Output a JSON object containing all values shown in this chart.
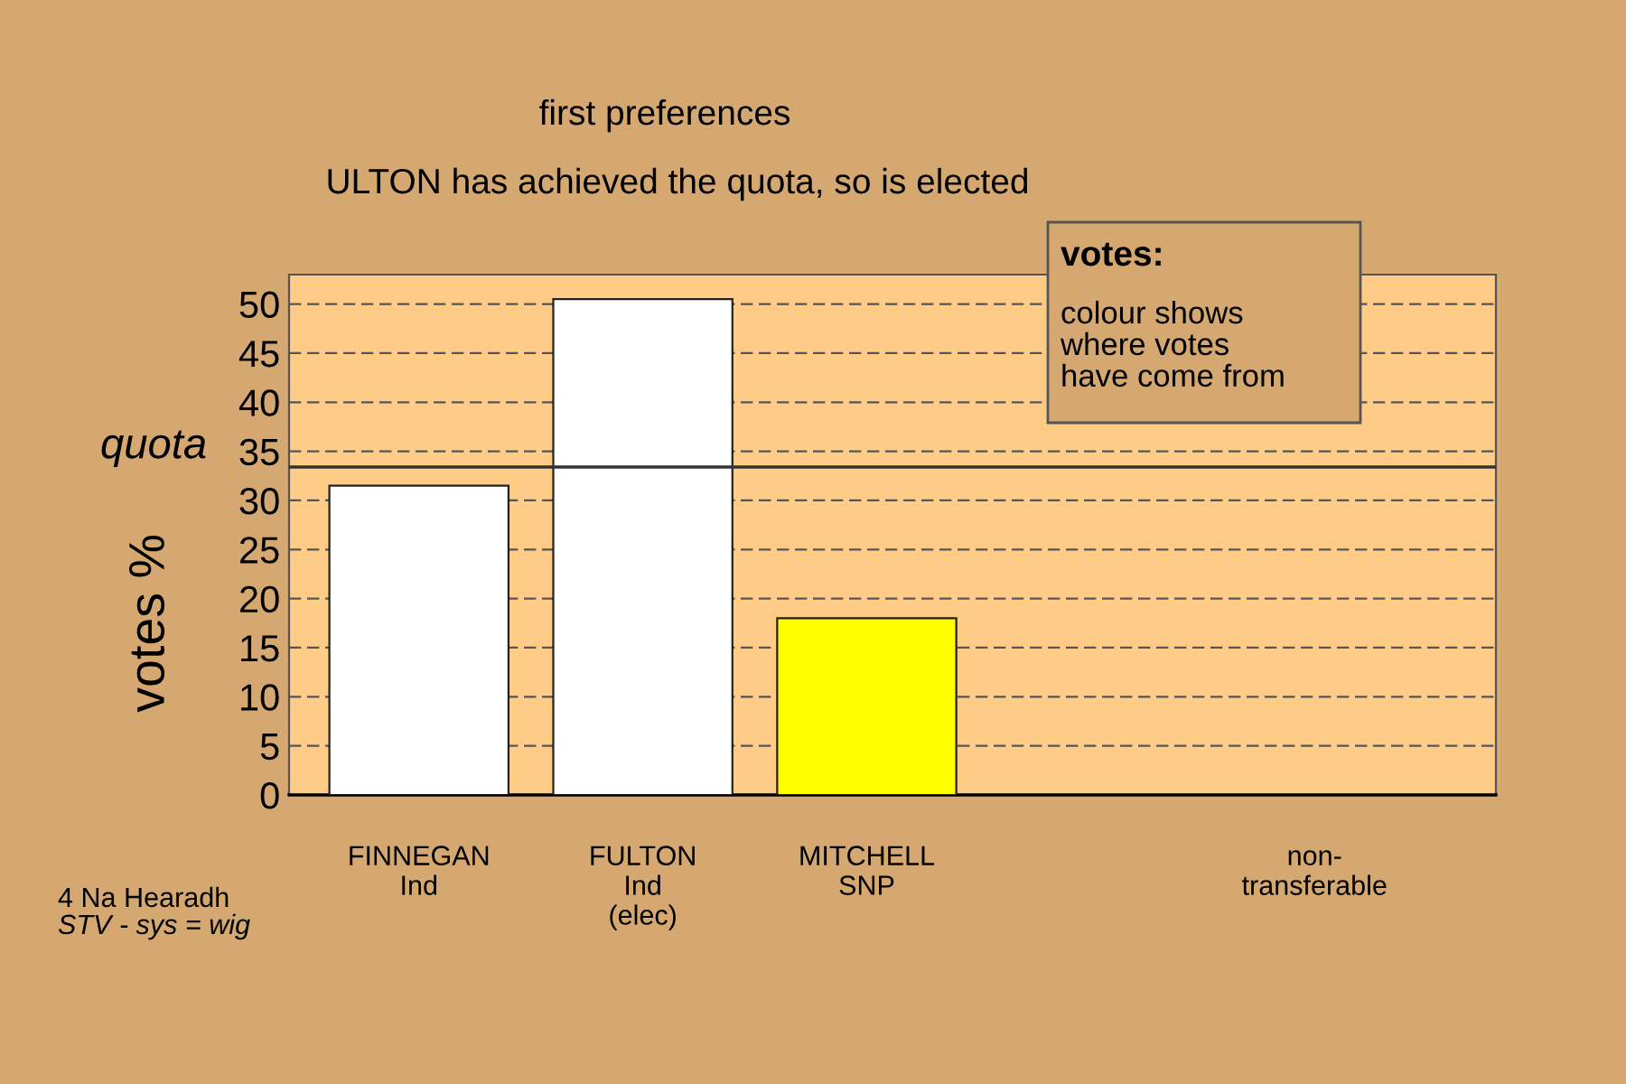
{
  "chart_data": {
    "type": "bar",
    "title": "first preferences",
    "subtitle": "ULTON has achieved the quota, so is elected",
    "ylabel": "votes %",
    "categories": [
      "FINNEGAN\nInd",
      "FULTON\nInd\n(elec)",
      "MITCHELL\nSNP",
      null,
      "non-\ntransferable"
    ],
    "colors": [
      "#ffffff",
      "#ffffff",
      "#ffff00",
      "#ffffff",
      "#ffffff"
    ],
    "values": [
      31.5,
      50.5,
      18.0,
      null,
      null
    ],
    "ylim": [
      0,
      53
    ],
    "yticks": [
      0,
      5,
      10,
      15,
      20,
      25,
      30,
      35,
      40,
      45,
      50
    ],
    "ref_lines": [
      {
        "axis": "y",
        "value": 33.4,
        "label": "quota",
        "color": "#333333"
      }
    ],
    "grid": "y",
    "annotations": [
      "votes:",
      "colour shows\nwhere votes\nhave come from",
      "4 Na Hearadh",
      "STV - sys = wig"
    ]
  }
}
